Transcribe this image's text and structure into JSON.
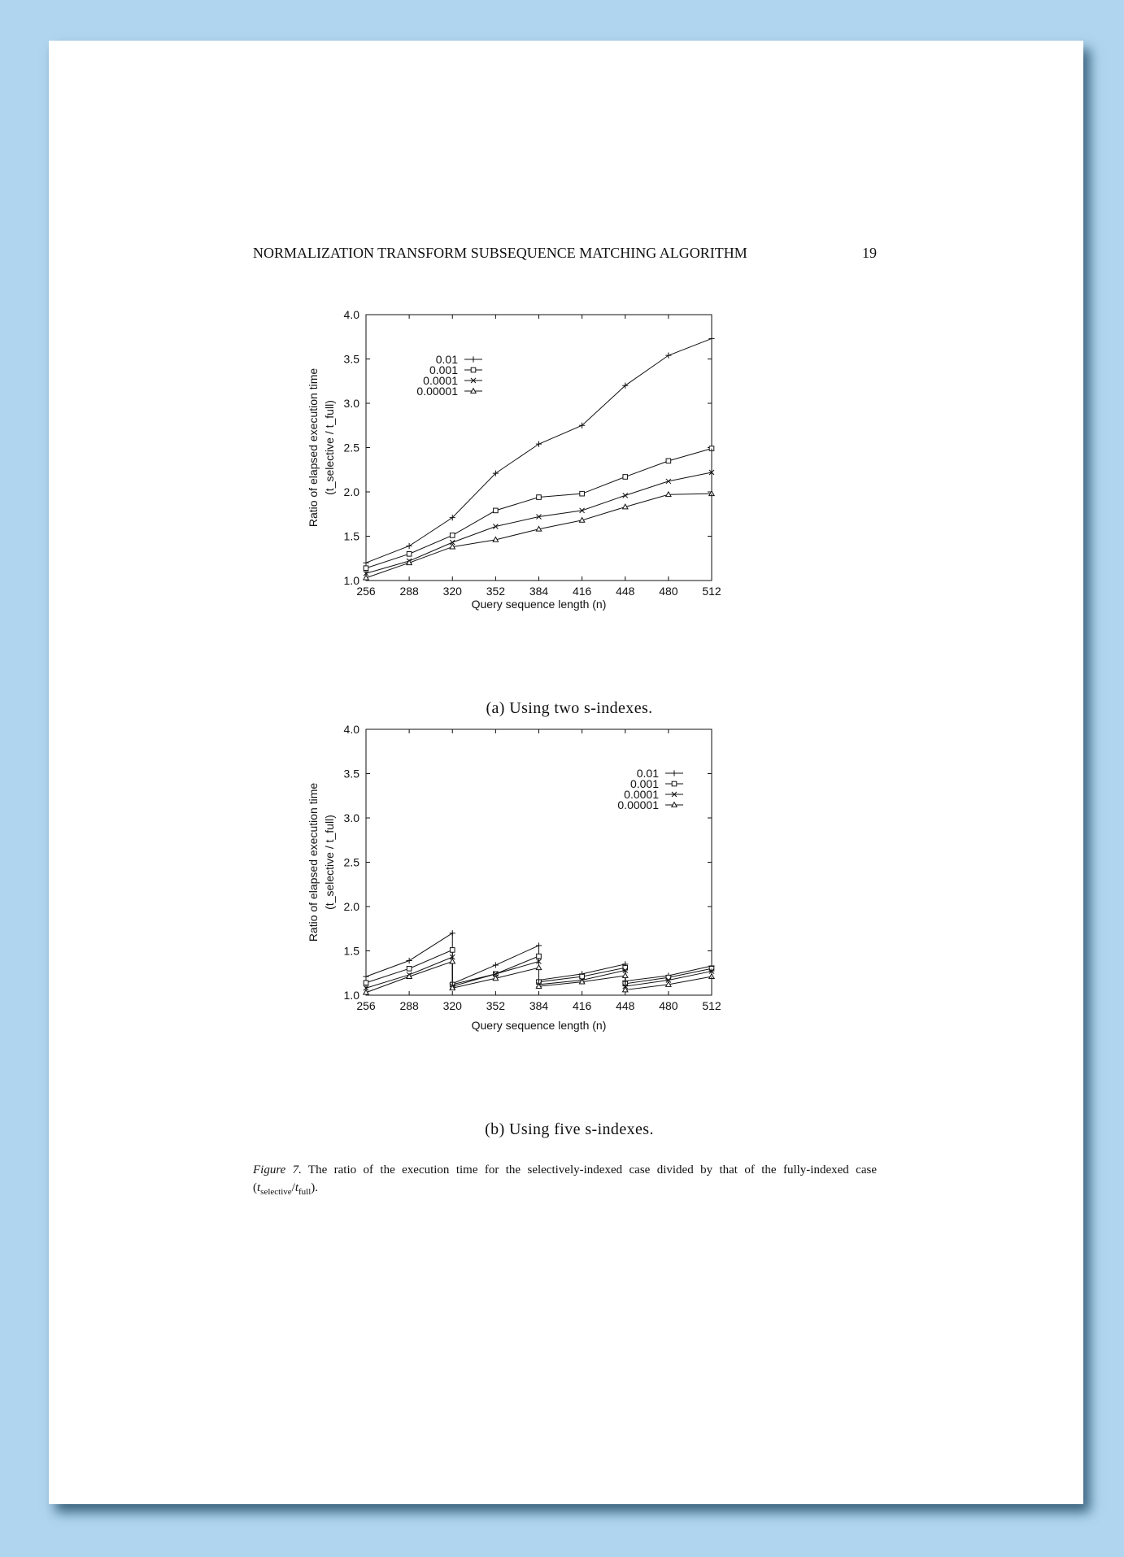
{
  "running_head": {
    "title": "NORMALIZATION TRANSFORM SUBSEQUENCE MATCHING ALGORITHM",
    "page_number": "19"
  },
  "figure": {
    "label": "Figure 7.",
    "caption_text": "The ratio of the execution time for the selectively-indexed case divided by that of the fully-indexed case (",
    "caption_t1": "t",
    "caption_sub1": "selective",
    "caption_slash": "/",
    "caption_t2": "t",
    "caption_sub2": "full",
    "caption_end": ")."
  },
  "colors": {
    "line": "#111111",
    "frame": "#111111",
    "background": "#ffffff",
    "page_surround": "#b0d6ef"
  },
  "chart_data": [
    {
      "id": "a",
      "type": "line",
      "caption": "(a) Using two s-indexes.",
      "xlabel": "Query sequence length (n)",
      "ylabel": "Ratio of elapsed execution time",
      "ylabel2": "(t_selective / t_full)",
      "xlim": [
        256,
        512
      ],
      "ylim": [
        1.0,
        4.0
      ],
      "xticks": [
        256,
        288,
        320,
        352,
        384,
        416,
        448,
        480,
        512
      ],
      "yticks": [
        "1.0",
        "1.5",
        "2.0",
        "2.5",
        "3.0",
        "3.5",
        "4.0"
      ],
      "legend_position": "top-left",
      "series": [
        {
          "name": "0.01",
          "marker": "plus",
          "x": [
            256,
            288,
            320,
            352,
            384,
            416,
            448,
            480,
            512
          ],
          "y": [
            1.2,
            1.39,
            1.71,
            2.21,
            2.54,
            2.75,
            3.2,
            3.54,
            3.73
          ]
        },
        {
          "name": "0.001",
          "marker": "square",
          "x": [
            256,
            288,
            320,
            352,
            384,
            416,
            448,
            480,
            512
          ],
          "y": [
            1.14,
            1.3,
            1.51,
            1.79,
            1.94,
            1.98,
            2.17,
            2.35,
            2.49
          ]
        },
        {
          "name": "0.0001",
          "marker": "cross",
          "x": [
            256,
            288,
            320,
            352,
            384,
            416,
            448,
            480,
            512
          ],
          "y": [
            1.08,
            1.22,
            1.43,
            1.61,
            1.72,
            1.79,
            1.96,
            2.12,
            2.22
          ]
        },
        {
          "name": "0.00001",
          "marker": "triangle",
          "x": [
            256,
            288,
            320,
            352,
            384,
            416,
            448,
            480,
            512
          ],
          "y": [
            1.03,
            1.2,
            1.38,
            1.46,
            1.58,
            1.68,
            1.83,
            1.97,
            1.98
          ]
        }
      ]
    },
    {
      "id": "b",
      "type": "line",
      "caption": "(b) Using five s-indexes.",
      "xlabel": "Query sequence length (n)",
      "ylabel": "Ratio of elapsed execution time",
      "ylabel2": "(t_selective / t_full)",
      "xlim": [
        256,
        512
      ],
      "ylim": [
        1.0,
        4.0
      ],
      "xticks": [
        256,
        288,
        320,
        352,
        384,
        416,
        448,
        480,
        512
      ],
      "yticks": [
        "1.0",
        "1.5",
        "2.0",
        "2.5",
        "3.0",
        "3.5",
        "4.0"
      ],
      "legend_position": "top-right",
      "series": [
        {
          "name": "0.01",
          "marker": "plus",
          "x": [
            256,
            288,
            320,
            320,
            352,
            384,
            384,
            416,
            448,
            448,
            480,
            512
          ],
          "y": [
            1.21,
            1.39,
            1.7,
            1.13,
            1.34,
            1.56,
            1.17,
            1.24,
            1.35,
            1.16,
            1.22,
            1.33
          ]
        },
        {
          "name": "0.001",
          "marker": "square",
          "x": [
            256,
            288,
            320,
            320,
            352,
            384,
            384,
            416,
            448,
            448,
            480,
            512
          ],
          "y": [
            1.14,
            1.3,
            1.51,
            1.12,
            1.24,
            1.44,
            1.15,
            1.21,
            1.31,
            1.13,
            1.2,
            1.3
          ]
        },
        {
          "name": "0.0001",
          "marker": "cross",
          "x": [
            256,
            288,
            320,
            320,
            352,
            384,
            384,
            416,
            448,
            448,
            480,
            512
          ],
          "y": [
            1.08,
            1.23,
            1.43,
            1.1,
            1.24,
            1.38,
            1.12,
            1.17,
            1.28,
            1.1,
            1.17,
            1.27
          ]
        },
        {
          "name": "0.00001",
          "marker": "triangle",
          "x": [
            256,
            288,
            320,
            320,
            352,
            384,
            384,
            416,
            448,
            448,
            480,
            512
          ],
          "y": [
            1.03,
            1.21,
            1.38,
            1.08,
            1.19,
            1.31,
            1.1,
            1.15,
            1.22,
            1.06,
            1.12,
            1.21
          ]
        }
      ]
    }
  ]
}
